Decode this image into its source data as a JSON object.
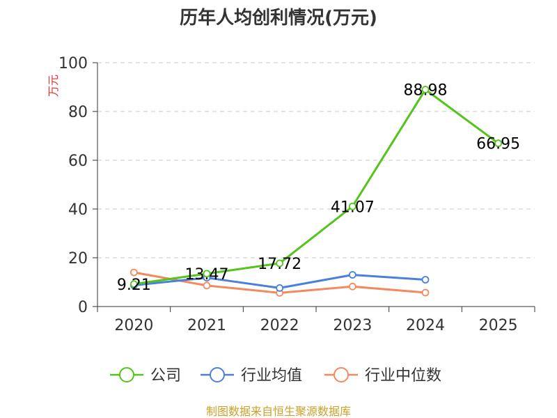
{
  "chart_data": {
    "type": "line",
    "title": "历年人均创利情况(万元)",
    "xlabel": "",
    "ylabel": "万元",
    "ylim": [
      0,
      100
    ],
    "yticks": [
      0,
      20,
      40,
      60,
      80,
      100
    ],
    "categories": [
      "2020",
      "2021",
      "2022",
      "2023",
      "2024",
      "2025"
    ],
    "grid": "horizontal dashed",
    "legend_position": "bottom",
    "series": [
      {
        "name": "公司",
        "color": "#52c41a",
        "values": [
          9.21,
          13.47,
          17.72,
          41.07,
          88.98,
          66.95
        ],
        "show_labels": true
      },
      {
        "name": "行业均值",
        "color": "#4a7fdc",
        "values": [
          8.7,
          11.8,
          7.6,
          13.0,
          11.0,
          null
        ],
        "show_labels": false
      },
      {
        "name": "行业中位数",
        "color": "#f4895f",
        "values": [
          14.0,
          8.6,
          5.6,
          8.2,
          5.7,
          null
        ],
        "show_labels": false
      }
    ],
    "data_labels": [
      "9.21",
      "13.47",
      "17.72",
      "41.07",
      "88.98",
      "66.95"
    ],
    "source": "制图数据来自恒生聚源数据库"
  }
}
